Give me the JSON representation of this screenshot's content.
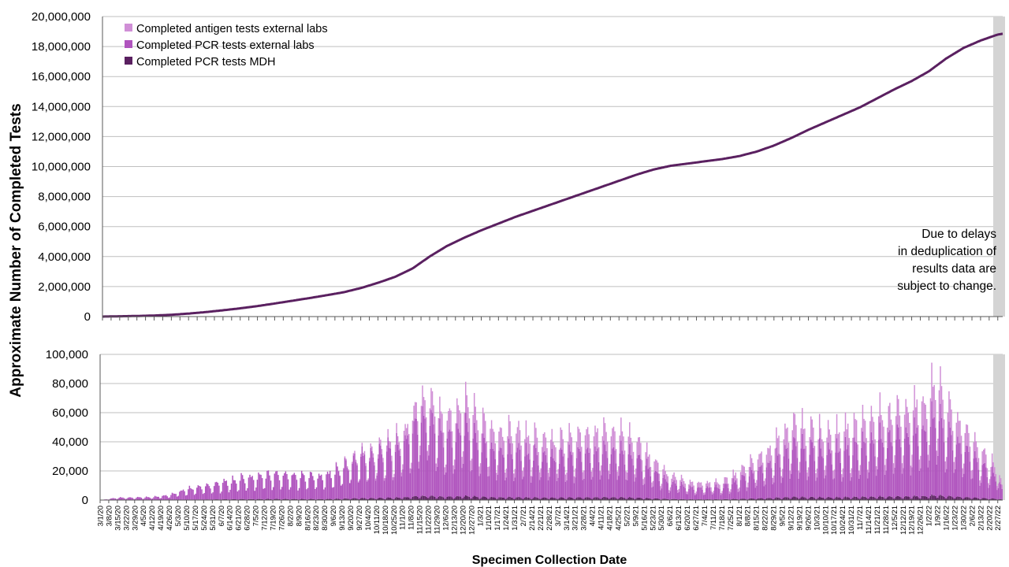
{
  "chart_data": [
    {
      "type": "area",
      "ylabel": "Approximate Number of Completed Tests",
      "xlabel": "Specimen Collection Date",
      "ylim": [
        0,
        20000000
      ],
      "y_ticks": [
        "0",
        "2,000,000",
        "4,000,000",
        "6,000,000",
        "8,000,000",
        "10,000,000",
        "12,000,000",
        "14,000,000",
        "16,000,000",
        "18,000,000",
        "20,000,000"
      ],
      "grid": true,
      "legend_position": "top-left",
      "legend": [
        {
          "label": "Completed antigen tests external labs",
          "color": "#D08FD6"
        },
        {
          "label": "Completed PCR tests external labs",
          "color": "#B054BE"
        },
        {
          "label": "Completed PCR tests MDH",
          "color": "#5A2060"
        }
      ],
      "note": [
        "Due to delays",
        "in deduplication of",
        "results data are",
        "subject to change."
      ],
      "cumulative_points": [
        [
          "3/1/20",
          0
        ],
        [
          "3/15/20",
          20000
        ],
        [
          "3/29/20",
          40000
        ],
        [
          "4/12/20",
          70000
        ],
        [
          "4/26/20",
          120000
        ],
        [
          "5/10/20",
          200000
        ],
        [
          "5/24/20",
          300000
        ],
        [
          "6/7/20",
          420000
        ],
        [
          "6/21/20",
          550000
        ],
        [
          "7/5/20",
          700000
        ],
        [
          "7/19/20",
          870000
        ],
        [
          "8/2/20",
          1050000
        ],
        [
          "8/16/20",
          1230000
        ],
        [
          "8/30/20",
          1420000
        ],
        [
          "9/13/20",
          1620000
        ],
        [
          "9/27/20",
          1900000
        ],
        [
          "10/11/20",
          2250000
        ],
        [
          "10/25/20",
          2650000
        ],
        [
          "11/8/20",
          3200000
        ],
        [
          "11/22/20",
          4000000
        ],
        [
          "12/6/20",
          4700000
        ],
        [
          "12/20/20",
          5250000
        ],
        [
          "1/3/21",
          5750000
        ],
        [
          "1/17/21",
          6200000
        ],
        [
          "1/31/21",
          6650000
        ],
        [
          "2/14/21",
          7050000
        ],
        [
          "2/28/21",
          7450000
        ],
        [
          "3/14/21",
          7850000
        ],
        [
          "3/28/21",
          8250000
        ],
        [
          "4/11/21",
          8650000
        ],
        [
          "4/25/21",
          9050000
        ],
        [
          "5/9/21",
          9450000
        ],
        [
          "5/23/21",
          9800000
        ],
        [
          "6/6/21",
          10050000
        ],
        [
          "6/20/21",
          10200000
        ],
        [
          "7/4/21",
          10350000
        ],
        [
          "7/18/21",
          10500000
        ],
        [
          "8/1/21",
          10700000
        ],
        [
          "8/15/21",
          11000000
        ],
        [
          "8/29/21",
          11400000
        ],
        [
          "9/12/21",
          11900000
        ],
        [
          "9/26/21",
          12450000
        ],
        [
          "10/10/21",
          12950000
        ],
        [
          "10/24/21",
          13450000
        ],
        [
          "11/7/21",
          13950000
        ],
        [
          "11/21/21",
          14550000
        ],
        [
          "12/5/21",
          15150000
        ],
        [
          "12/19/21",
          15700000
        ],
        [
          "1/2/22",
          16350000
        ],
        [
          "1/16/22",
          17200000
        ],
        [
          "1/30/22",
          17900000
        ],
        [
          "2/13/22",
          18400000
        ],
        [
          "2/27/22",
          18800000
        ],
        [
          "3/3/22",
          18850000
        ]
      ]
    },
    {
      "type": "bar",
      "ylim": [
        0,
        100000
      ],
      "y_ticks": [
        "0",
        "20,000",
        "40,000",
        "60,000",
        "80,000",
        "100,000"
      ],
      "grid": true,
      "series": [
        {
          "name": "Completed antigen tests external labs",
          "color": "#D08FD6"
        },
        {
          "name": "Completed PCR tests external labs",
          "color": "#B054BE"
        },
        {
          "name": "Completed PCR tests MDH",
          "color": "#5A2060"
        }
      ],
      "weekly_peak_points": [
        [
          "3/1/20",
          0
        ],
        [
          "3/15/20",
          2000
        ],
        [
          "3/29/20",
          2000
        ],
        [
          "4/12/20",
          2500
        ],
        [
          "4/26/20",
          4000
        ],
        [
          "5/10/20",
          9000
        ],
        [
          "5/24/20",
          11000
        ],
        [
          "6/7/20",
          14000
        ],
        [
          "6/21/20",
          17000
        ],
        [
          "7/5/20",
          19000
        ],
        [
          "7/19/20",
          21000
        ],
        [
          "8/2/20",
          19500
        ],
        [
          "8/16/20",
          19000
        ],
        [
          "8/30/20",
          20000
        ],
        [
          "9/13/20",
          27000
        ],
        [
          "9/27/20",
          36000
        ],
        [
          "10/11/20",
          42000
        ],
        [
          "10/25/20",
          47000
        ],
        [
          "11/8/20",
          62000
        ],
        [
          "11/15/20",
          83000
        ],
        [
          "11/22/20",
          86000
        ],
        [
          "12/6/20",
          62000
        ],
        [
          "12/20/20",
          80000
        ],
        [
          "1/3/21",
          60000
        ],
        [
          "1/17/21",
          55000
        ],
        [
          "1/31/21",
          55000
        ],
        [
          "2/14/21",
          50000
        ],
        [
          "2/28/21",
          48000
        ],
        [
          "3/14/21",
          48000
        ],
        [
          "3/28/21",
          53000
        ],
        [
          "4/11/21",
          55000
        ],
        [
          "4/25/21",
          53000
        ],
        [
          "5/9/21",
          47000
        ],
        [
          "5/23/21",
          31000
        ],
        [
          "6/6/21",
          20000
        ],
        [
          "6/20/21",
          15000
        ],
        [
          "7/4/21",
          13000
        ],
        [
          "7/18/21",
          15000
        ],
        [
          "8/1/21",
          22000
        ],
        [
          "8/15/21",
          33000
        ],
        [
          "8/29/21",
          43000
        ],
        [
          "9/12/21",
          60000
        ],
        [
          "9/26/21",
          57000
        ],
        [
          "10/10/21",
          53000
        ],
        [
          "10/24/21",
          55000
        ],
        [
          "11/7/21",
          60000
        ],
        [
          "11/21/21",
          67000
        ],
        [
          "12/5/21",
          70000
        ],
        [
          "12/19/21",
          70000
        ],
        [
          "1/2/22",
          84000
        ],
        [
          "1/9/22",
          92000
        ],
        [
          "1/16/22",
          78000
        ],
        [
          "1/30/22",
          60000
        ],
        [
          "2/13/22",
          40000
        ],
        [
          "2/27/22",
          25000
        ],
        [
          "3/3/22",
          8000
        ]
      ]
    }
  ],
  "x_tick_labels": [
    "3/1/20",
    "3/8/20",
    "3/15/20",
    "3/22/20",
    "3/29/20",
    "4/5/20",
    "4/12/20",
    "4/19/20",
    "4/26/20",
    "5/3/20",
    "5/10/20",
    "5/17/20",
    "5/24/20",
    "5/31/20",
    "6/7/20",
    "6/14/20",
    "6/21/20",
    "6/28/20",
    "7/5/20",
    "7/12/20",
    "7/19/20",
    "7/26/20",
    "8/2/20",
    "8/9/20",
    "8/16/20",
    "8/23/20",
    "8/30/20",
    "9/6/20",
    "9/13/20",
    "9/20/20",
    "9/27/20",
    "10/4/20",
    "10/11/20",
    "10/18/20",
    "10/25/20",
    "11/1/20",
    "11/8/20",
    "11/15/20",
    "11/22/20",
    "11/29/20",
    "12/6/20",
    "12/13/20",
    "12/20/20",
    "12/27/20",
    "1/3/21",
    "1/10/21",
    "1/17/21",
    "1/24/21",
    "1/31/21",
    "2/7/21",
    "2/14/21",
    "2/21/21",
    "2/28/21",
    "3/7/21",
    "3/14/21",
    "3/21/21",
    "3/28/21",
    "4/4/21",
    "4/11/21",
    "4/18/21",
    "4/25/21",
    "5/2/21",
    "5/9/21",
    "5/16/21",
    "5/23/21",
    "5/30/21",
    "6/6/21",
    "6/13/21",
    "6/20/21",
    "6/27/21",
    "7/4/21",
    "7/11/21",
    "7/18/21",
    "7/25/21",
    "8/1/21",
    "8/8/21",
    "8/15/21",
    "8/22/21",
    "8/29/21",
    "9/5/21",
    "9/12/21",
    "9/19/21",
    "9/26/21",
    "10/3/21",
    "10/10/21",
    "10/17/21",
    "10/24/21",
    "10/31/21",
    "11/7/21",
    "11/14/21",
    "11/21/21",
    "11/28/21",
    "12/5/21",
    "12/12/21",
    "12/19/21",
    "12/26/21",
    "1/2/22",
    "1/9/22",
    "1/16/22",
    "1/23/22",
    "1/30/22",
    "2/6/22",
    "2/13/22",
    "2/20/22",
    "2/27/22"
  ],
  "colors": {
    "antigen": "#D08FD6",
    "pcr_external": "#B054BE",
    "pcr_mdh": "#5A2060",
    "grid": "#BFBFBF",
    "axis": "#595959",
    "shade": "#D4D4D4"
  }
}
